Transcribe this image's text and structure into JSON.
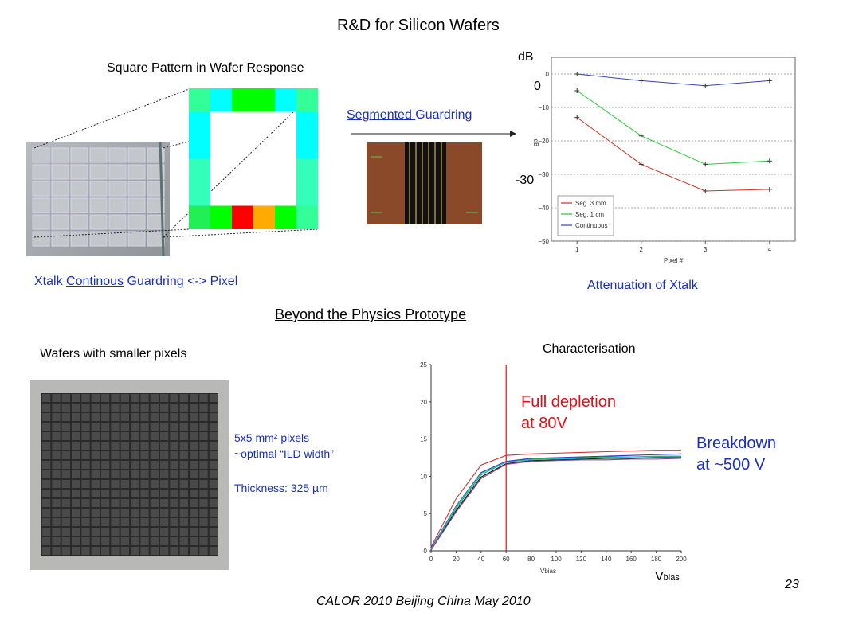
{
  "title": "R&D for Silicon Wafers",
  "top_left": {
    "heading": "Square Pattern in Wafer Response",
    "caption_pre": "Xtalk ",
    "caption_link": "Continous",
    "caption_post": " Guardring <-> Pixel",
    "square_pattern": {
      "top_row": [
        "#33ff99",
        "#00ffff",
        "#00ff00",
        "#00ff00",
        "#00ffff",
        "#33ff99"
      ],
      "bottom_row": [
        "#22ee55",
        "#00ff00",
        "#ff0000",
        "#ffaa00",
        "#00ff00",
        "#33ff99"
      ],
      "left_col": [
        "#00ffff",
        "#00ffff",
        "#33ffbb",
        "#33ffbb"
      ],
      "right_col": [
        "#00ffff",
        "#00ffff",
        "#33ffbb",
        "#33ffbb"
      ]
    }
  },
  "segmented": {
    "link": "Segmented ",
    "rest": "Guardring"
  },
  "atten_chart": {
    "dB_label": "dB",
    "zero_label": "0",
    "minus30_label": "-30",
    "caption": "Attenuation of Xtalk"
  },
  "chart_data": [
    {
      "type": "line",
      "ylabel": "dB",
      "xlabel": "Pixel #",
      "x": [
        1,
        2,
        3,
        4
      ],
      "xticks": [
        "1",
        "2",
        "3",
        "4"
      ],
      "yticks": [
        "0",
        "−10",
        "−20",
        "−30",
        "−40",
        "−50"
      ],
      "ylim": [
        -50,
        5
      ],
      "xlim": [
        0.6,
        4.4
      ],
      "legend_position": "bottom-left",
      "series": [
        {
          "name": "Seg. 3 mm",
          "color": "#cc3322",
          "values": [
            -13,
            -27,
            -35,
            -34.5
          ]
        },
        {
          "name": "Seg. 1 cm",
          "color": "#22cc33",
          "values": [
            -5,
            -18.5,
            -27,
            -26
          ]
        },
        {
          "name": "Continuous",
          "color": "#3344bb",
          "values": [
            0,
            -2,
            -3.5,
            -2
          ]
        }
      ]
    },
    {
      "type": "line",
      "xlabel": "Vbias",
      "x": [
        0,
        20,
        40,
        60,
        80,
        100,
        120,
        140,
        160,
        180,
        200
      ],
      "xticks": [
        "0",
        "20",
        "40",
        "60",
        "80",
        "100",
        "120",
        "140",
        "160",
        "180",
        "200"
      ],
      "yticks": [
        "0",
        "5",
        "10",
        "15",
        "20",
        "25"
      ],
      "ylim": [
        0,
        25
      ],
      "xlim": [
        0,
        200
      ],
      "marker_x": 60,
      "series": [
        {
          "color": "#cc3333",
          "values": [
            0.5,
            7,
            11.5,
            12.8,
            13,
            13.1,
            13.2,
            13.3,
            13.4,
            13.5,
            13.5
          ]
        },
        {
          "color": "#3333cc",
          "values": [
            0.3,
            6,
            10.5,
            12,
            12.4,
            12.5,
            12.6,
            12.7,
            12.8,
            12.9,
            13
          ]
        },
        {
          "color": "#22aa44",
          "values": [
            0.2,
            5.7,
            10.2,
            11.9,
            12.3,
            12.4,
            12.5,
            12.6,
            12.6,
            12.7,
            12.7
          ]
        },
        {
          "color": "#111111",
          "values": [
            0.1,
            5.4,
            9.9,
            11.7,
            12.1,
            12.2,
            12.3,
            12.4,
            12.4,
            12.5,
            12.5
          ]
        },
        {
          "color": "#22bbcc",
          "values": [
            0.2,
            5.9,
            10.4,
            11.9,
            12.2,
            12.3,
            12.4,
            12.5,
            12.6,
            12.6,
            12.6
          ]
        },
        {
          "color": "#884488",
          "values": [
            0.1,
            5.2,
            9.7,
            11.6,
            12,
            12.1,
            12.2,
            12.2,
            12.3,
            12.3,
            12.4
          ]
        }
      ]
    }
  ],
  "section2_title": "Beyond the Physics Prototype",
  "wafer_small": {
    "heading": "Wafers with smaller pixels",
    "line1": "5x5 mm² pixels",
    "line2": "~optimal “ILD width”",
    "line3": "Thickness: 325 µm"
  },
  "characterisation": {
    "heading": "Characterisation",
    "full_depletion_1": "Full depletion",
    "full_depletion_2": "at 80V",
    "breakdown_1": "Breakdown",
    "breakdown_2": "at ~500 V",
    "vbias_main": "V",
    "vbias_sub": "bias"
  },
  "footer": "CALOR 2010 Beijing China May 2010",
  "page_number": "23"
}
